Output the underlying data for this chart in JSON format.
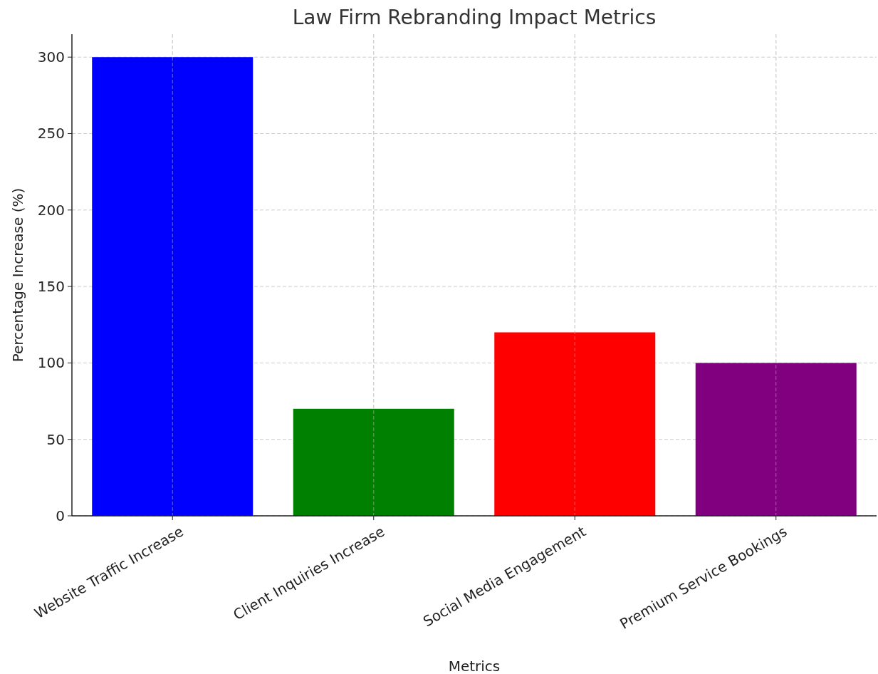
{
  "chart_data": {
    "type": "bar",
    "title": "Law Firm Rebranding Impact Metrics",
    "xlabel": "Metrics",
    "ylabel": "Percentage Increase (%)",
    "categories": [
      "Website Traffic Increase",
      "Client Inquiries Increase",
      "Social Media Engagement",
      "Premium Service Bookings"
    ],
    "values": [
      300,
      70,
      120,
      100
    ],
    "colors": [
      "#0000ff",
      "#008000",
      "#ff0000",
      "#800080"
    ],
    "ylim": [
      0,
      315
    ],
    "yticks": [
      0,
      50,
      100,
      150,
      200,
      250,
      300
    ],
    "grid": true
  }
}
